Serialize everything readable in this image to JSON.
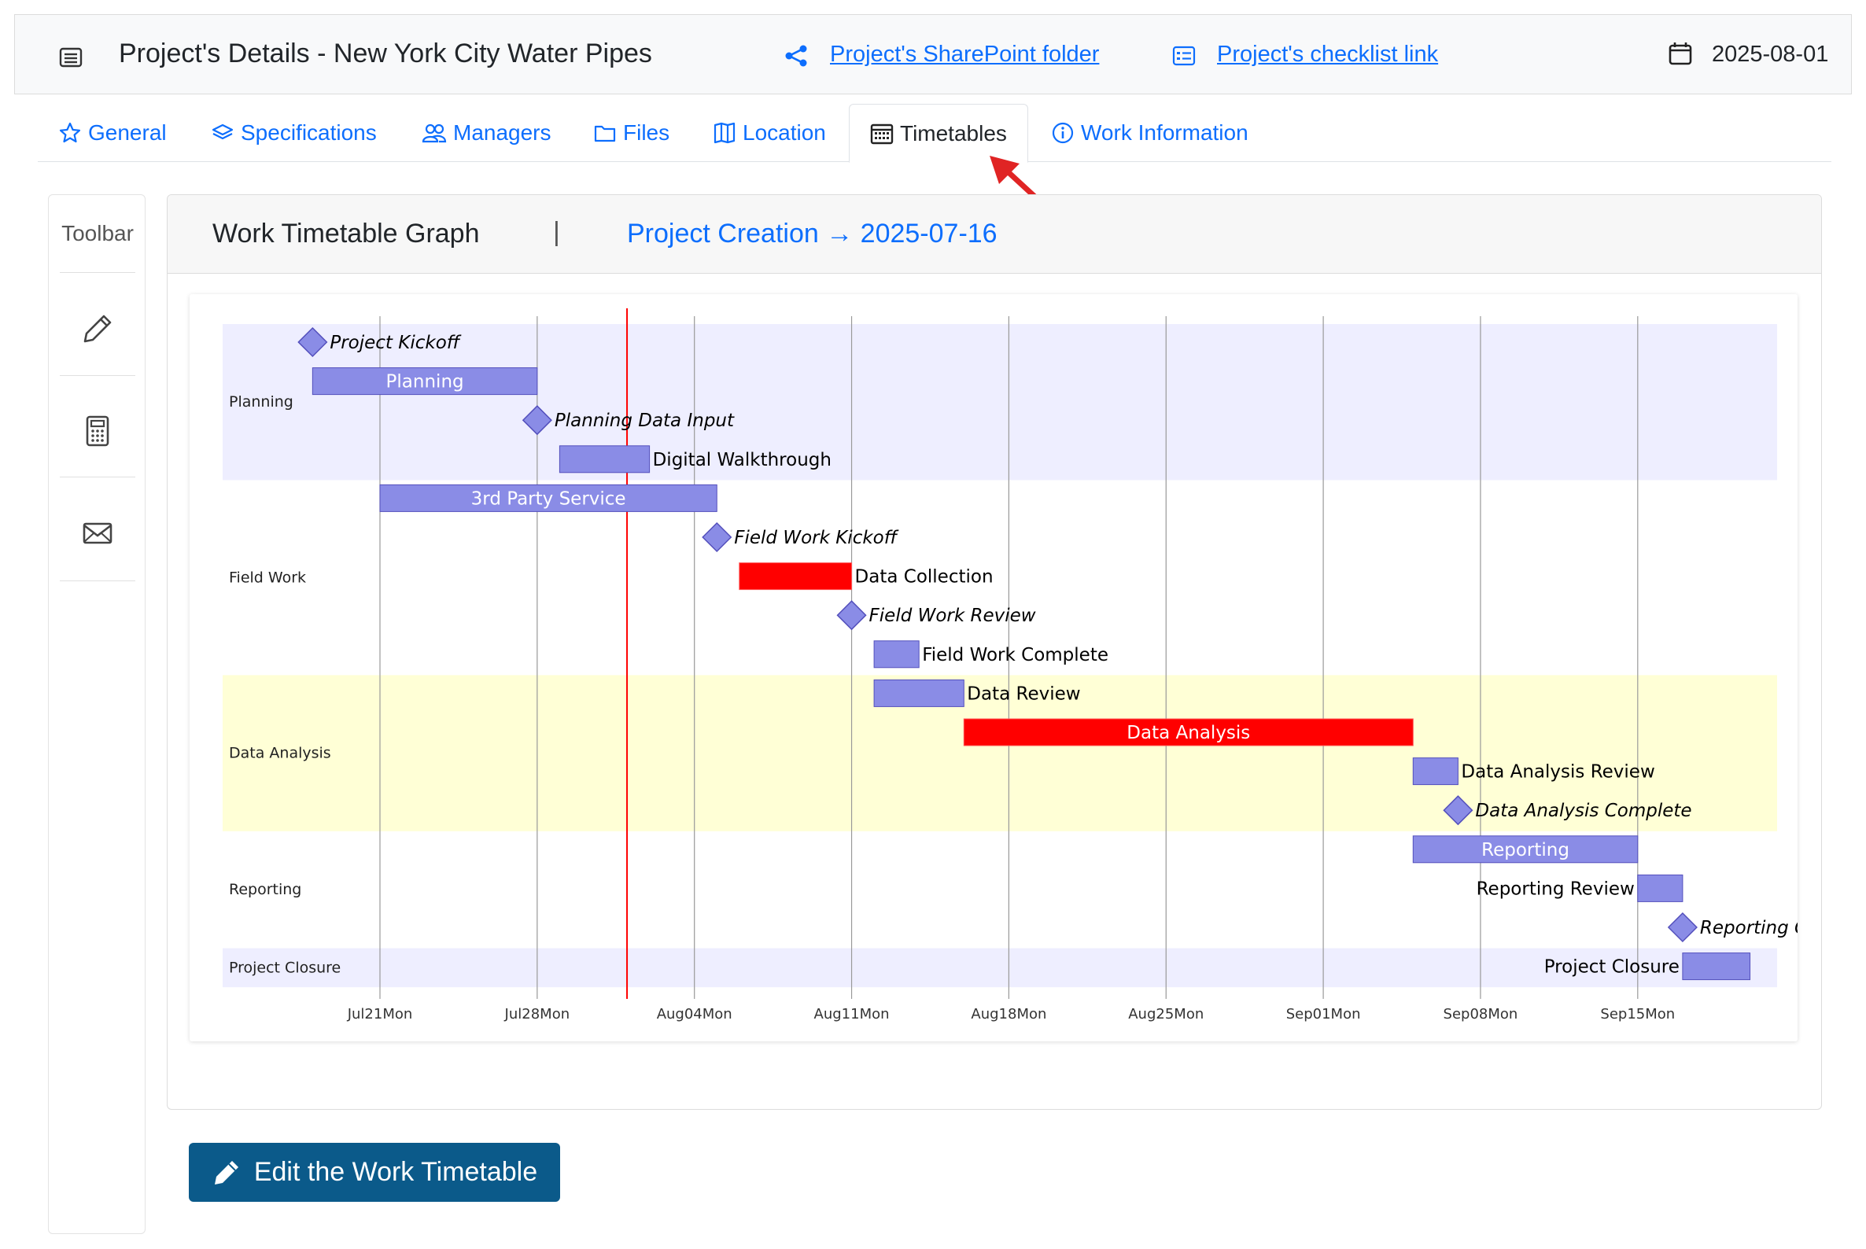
{
  "header": {
    "title": "Project's Details - New York City Water Pipes",
    "sharepoint_link": "Project's SharePoint folder",
    "checklist_link": "Project's checklist link",
    "date": "2025-08-01"
  },
  "tabs": [
    {
      "label": "General",
      "icon": "star-icon",
      "active": false
    },
    {
      "label": "Specifications",
      "icon": "layers-icon",
      "active": false
    },
    {
      "label": "Managers",
      "icon": "people-icon",
      "active": false
    },
    {
      "label": "Files",
      "icon": "folder-icon",
      "active": false
    },
    {
      "label": "Location",
      "icon": "map-icon",
      "active": false
    },
    {
      "label": "Timetables",
      "icon": "calendar-grid-icon",
      "active": true
    },
    {
      "label": "Work Information",
      "icon": "info-icon",
      "active": false
    }
  ],
  "toolbar": {
    "title": "Toolbar",
    "buttons": [
      "pencil-icon",
      "calculator-icon",
      "envelope-icon"
    ]
  },
  "card": {
    "title": "Work Timetable Graph",
    "divider": "|",
    "creation": "Project Creation → 2025-07-16"
  },
  "edit_button": {
    "label": "Edit the Work Timetable"
  },
  "colors": {
    "task": "#8a8ce6",
    "task_stroke": "#534fbc",
    "critical": "#ff0000",
    "milestone": "#8a8ce6",
    "today_line": "#ff0000",
    "section_alt_1": "#eeeeff",
    "section_alt_2": "#ffffd6",
    "link": "#0d6efd",
    "button": "#0b5a8a"
  },
  "chart_data": {
    "type": "gantt",
    "today": "2025-08-01",
    "x_range": [
      "2025-07-16",
      "2025-09-22"
    ],
    "x_ticks": [
      {
        "date": "2025-07-21",
        "label": "Jul21Mon"
      },
      {
        "date": "2025-07-28",
        "label": "Jul28Mon"
      },
      {
        "date": "2025-08-04",
        "label": "Aug04Mon"
      },
      {
        "date": "2025-08-11",
        "label": "Aug11Mon"
      },
      {
        "date": "2025-08-18",
        "label": "Aug18Mon"
      },
      {
        "date": "2025-08-25",
        "label": "Aug25Mon"
      },
      {
        "date": "2025-09-01",
        "label": "Sep01Mon"
      },
      {
        "date": "2025-09-08",
        "label": "Sep08Mon"
      },
      {
        "date": "2025-09-15",
        "label": "Sep15Mon"
      }
    ],
    "sections": [
      {
        "name": "Planning",
        "band": "section_alt_1",
        "tasks": [
          {
            "name": "Project Kickoff",
            "start": "2025-07-18",
            "end": "2025-07-18",
            "milestone": true
          },
          {
            "name": "Planning",
            "start": "2025-07-18",
            "end": "2025-07-28"
          },
          {
            "name": "Planning Data Input",
            "start": "2025-07-28",
            "end": "2025-07-28",
            "milestone": true
          },
          {
            "name": "Digital Walkthrough",
            "start": "2025-07-29",
            "end": "2025-08-02"
          }
        ]
      },
      {
        "name": "Field Work",
        "band": "none",
        "tasks": [
          {
            "name": "3rd Party Service",
            "start": "2025-07-21",
            "end": "2025-08-05"
          },
          {
            "name": "Field Work Kickoff",
            "start": "2025-08-05",
            "end": "2025-08-05",
            "milestone": true
          },
          {
            "name": "Data Collection",
            "start": "2025-08-06",
            "end": "2025-08-11",
            "critical": true
          },
          {
            "name": "Field Work Review",
            "start": "2025-08-11",
            "end": "2025-08-11",
            "milestone": true
          },
          {
            "name": "Field Work Complete",
            "start": "2025-08-12",
            "end": "2025-08-14"
          }
        ]
      },
      {
        "name": "Data Analysis",
        "band": "section_alt_2",
        "tasks": [
          {
            "name": "Data Review",
            "start": "2025-08-12",
            "end": "2025-08-16"
          },
          {
            "name": "Data Analysis",
            "start": "2025-08-16",
            "end": "2025-09-05",
            "critical": true
          },
          {
            "name": "Data Analysis Review",
            "start": "2025-09-05",
            "end": "2025-09-07"
          },
          {
            "name": "Data Analysis Complete",
            "start": "2025-09-07",
            "end": "2025-09-07",
            "milestone": true
          }
        ]
      },
      {
        "name": "Reporting",
        "band": "none",
        "tasks": [
          {
            "name": "Reporting",
            "start": "2025-09-05",
            "end": "2025-09-15"
          },
          {
            "name": "Reporting Review",
            "start": "2025-09-15",
            "end": "2025-09-17"
          },
          {
            "name": "Reporting Complete",
            "start": "2025-09-17",
            "end": "2025-09-17",
            "milestone": true
          }
        ]
      },
      {
        "name": "Project Closure",
        "band": "section_alt_1",
        "tasks": [
          {
            "name": "Project Closure",
            "start": "2025-09-17",
            "end": "2025-09-20"
          }
        ]
      }
    ]
  }
}
